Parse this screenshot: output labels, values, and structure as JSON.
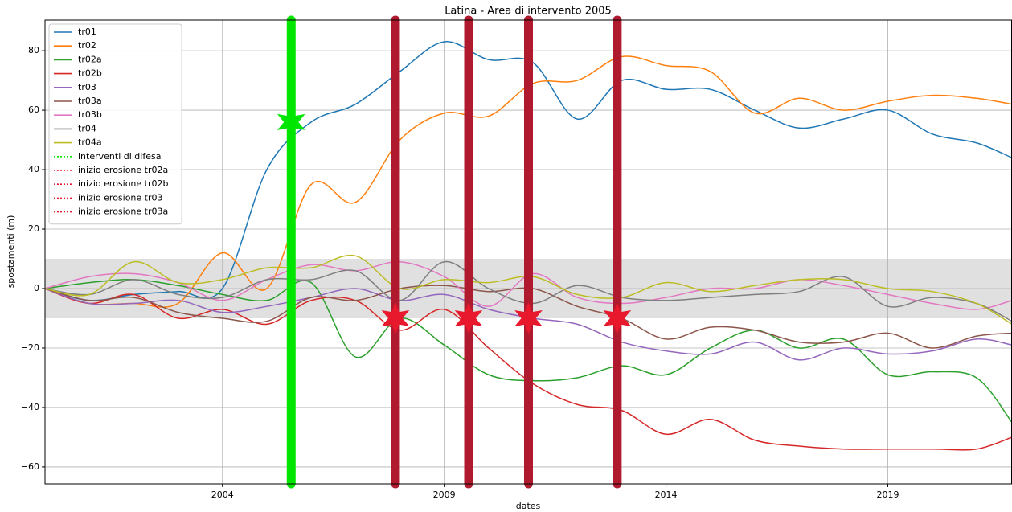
{
  "chart_data": {
    "type": "line",
    "title": "Latina - Area di intervento 2005",
    "xlabel": "dates",
    "ylabel": "spostamenti (m)",
    "x": [
      2000,
      2001,
      2002,
      2003,
      2004,
      2005,
      2006,
      2007,
      2008,
      2009,
      2010,
      2011,
      2012,
      2013,
      2014,
      2015,
      2016,
      2017,
      2018,
      2019,
      2020,
      2021,
      2021.8
    ],
    "xlim": [
      2000,
      2021.8
    ],
    "xticks": [
      2004,
      2009,
      2014,
      2019
    ],
    "ylim": [
      -65.7,
      90.3
    ],
    "yticks": [
      {
        "value": -60,
        "label": "−60"
      },
      {
        "value": -40,
        "label": "−40"
      },
      {
        "value": -20,
        "label": "−20"
      },
      0,
      20,
      40,
      60,
      80
    ],
    "grid": true,
    "legend": "upper left",
    "band": [
      -10,
      10
    ],
    "band_color": "#e0e0e0",
    "series": [
      {
        "name": "tr01",
        "color": "#1f77b4",
        "values": [
          0,
          -4,
          -2,
          -1,
          0,
          40,
          56,
          62,
          73,
          83,
          77,
          76,
          57,
          70,
          67,
          67,
          60,
          54,
          57,
          60,
          52,
          49,
          44
        ]
      },
      {
        "name": "tr02",
        "color": "#ff7f0e",
        "values": [
          0,
          -5,
          -5,
          -5,
          12,
          0,
          35,
          29,
          50,
          59,
          58,
          69,
          70,
          78,
          75,
          73,
          59,
          64,
          60,
          63,
          65,
          64,
          62
        ]
      },
      {
        "name": "tr02a",
        "color": "#2ca02c",
        "values": [
          0,
          2,
          3,
          1,
          -2,
          -4,
          2,
          -23,
          -10,
          -19,
          -29,
          -31,
          -30,
          -26,
          -29,
          -20,
          -14,
          -20,
          -17,
          -29,
          -28,
          -30,
          -45
        ]
      },
      {
        "name": "tr02b",
        "color": "#d62728",
        "values": [
          0,
          -5,
          -2,
          -10,
          -7,
          -12,
          -4,
          -4,
          -14,
          -7,
          -20,
          -32,
          -39,
          -41,
          -49,
          -44,
          -51,
          -53,
          -54,
          -54,
          -54,
          -54,
          -50
        ]
      },
      {
        "name": "tr03",
        "color": "#9467bd",
        "values": [
          0,
          -5,
          -5,
          -4,
          -8,
          -6,
          -3,
          0,
          -4,
          -2,
          -7,
          -10,
          -12,
          -18,
          -21,
          -22,
          -18,
          -24,
          -20,
          -22,
          -21,
          -17,
          -19
        ]
      },
      {
        "name": "tr03a",
        "color": "#8c564b",
        "values": [
          0,
          -4,
          -3,
          -8,
          -10,
          -11,
          -3,
          -4,
          0,
          1,
          -1,
          0,
          -6,
          -10,
          -17,
          -13,
          -14,
          -18,
          -18,
          -15,
          -20,
          -16,
          -15
        ]
      },
      {
        "name": "tr03b",
        "color": "#e377c2",
        "values": [
          0,
          4,
          5,
          2,
          -4,
          3,
          8,
          6,
          9,
          4,
          -6,
          5,
          -3,
          -5,
          -3,
          0,
          0,
          3,
          1,
          -2,
          -5,
          -7,
          -4
        ]
      },
      {
        "name": "tr04",
        "color": "#7f7f7f",
        "values": [
          0,
          -2,
          3,
          -2,
          -3,
          3,
          3,
          6,
          -4,
          9,
          0,
          -5,
          1,
          -3,
          -4,
          -3,
          -2,
          -1,
          4,
          -6,
          -3,
          -5,
          -11
        ]
      },
      {
        "name": "tr04a",
        "color": "#bcbd22",
        "values": [
          0,
          -2,
          9,
          2,
          3,
          7,
          7,
          11,
          0,
          3,
          2,
          4,
          -2,
          -3,
          2,
          -1,
          1,
          3,
          3,
          0,
          -1,
          -5,
          -12
        ]
      }
    ],
    "events": [
      {
        "name": "interventi di difesa",
        "color": "#00e600",
        "line_color": "#00e600",
        "x": 2005.55,
        "marker_y": 56
      },
      {
        "name": "inizio erosione tr02a",
        "color": "#e8192c",
        "line_color": "#b01a2e",
        "x": 2007.9,
        "marker_y": -10
      },
      {
        "name": "inizio erosione tr02b",
        "color": "#e8192c",
        "line_color": "#b01a2e",
        "x": 2009.55,
        "marker_y": -10
      },
      {
        "name": "inizio erosione tr03",
        "color": "#e8192c",
        "line_color": "#b01a2e",
        "x": 2010.9,
        "marker_y": -10
      },
      {
        "name": "inizio erosione tr03a",
        "color": "#e8192c",
        "line_color": "#b01a2e",
        "x": 2012.9,
        "marker_y": -10
      }
    ]
  }
}
